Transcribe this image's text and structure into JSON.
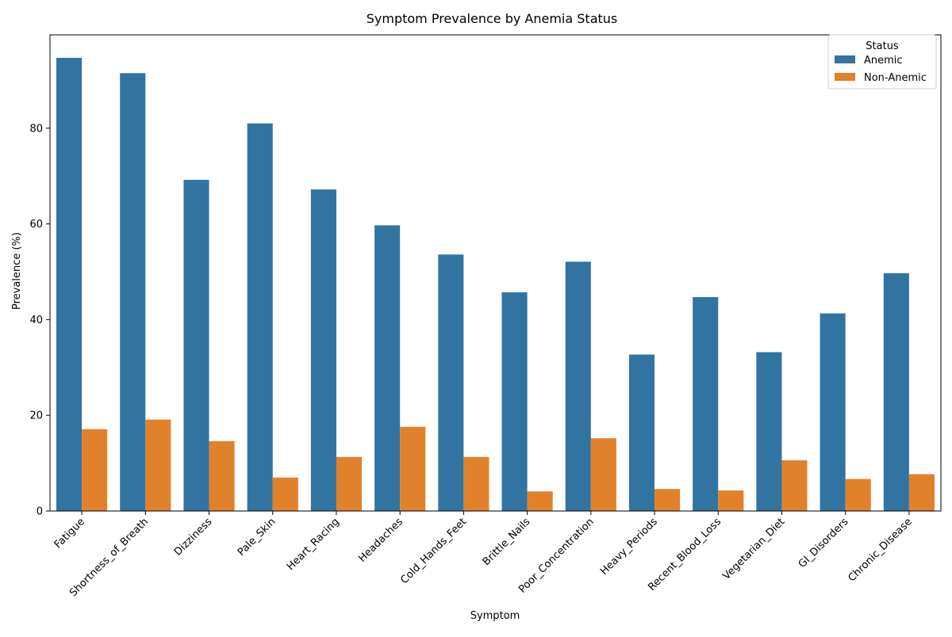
{
  "chart_data": {
    "type": "bar",
    "title": "Symptom Prevalence by Anemia Status",
    "xlabel": "Symptom",
    "ylabel": "Prevalence (%)",
    "ylim": [
      0,
      99.5
    ],
    "yticks": [
      0,
      20,
      40,
      60,
      80
    ],
    "grid": false,
    "legend_title": "Status",
    "legend_position": "top-right",
    "categories": [
      "Fatigue",
      "Shortness_of_Breath",
      "Dizziness",
      "Pale_Skin",
      "Heart_Racing",
      "Headaches",
      "Cold_Hands_Feet",
      "Brittle_Nails",
      "Poor_Concentration",
      "Heavy_Periods",
      "Recent_Blood_Loss",
      "Vegetarian_Diet",
      "GI_Disorders",
      "Chronic_Disease"
    ],
    "series": [
      {
        "name": "Anemic",
        "color": "#3274a1",
        "values": [
          94.7,
          91.5,
          69.2,
          81.0,
          67.2,
          59.7,
          53.6,
          45.7,
          52.1,
          32.7,
          44.7,
          33.2,
          41.3,
          49.7
        ]
      },
      {
        "name": "Non-Anemic",
        "color": "#e1812c",
        "values": [
          17.1,
          19.1,
          14.6,
          7.0,
          11.3,
          17.6,
          11.3,
          4.1,
          15.2,
          4.6,
          4.3,
          10.6,
          6.7,
          7.7
        ]
      }
    ]
  }
}
